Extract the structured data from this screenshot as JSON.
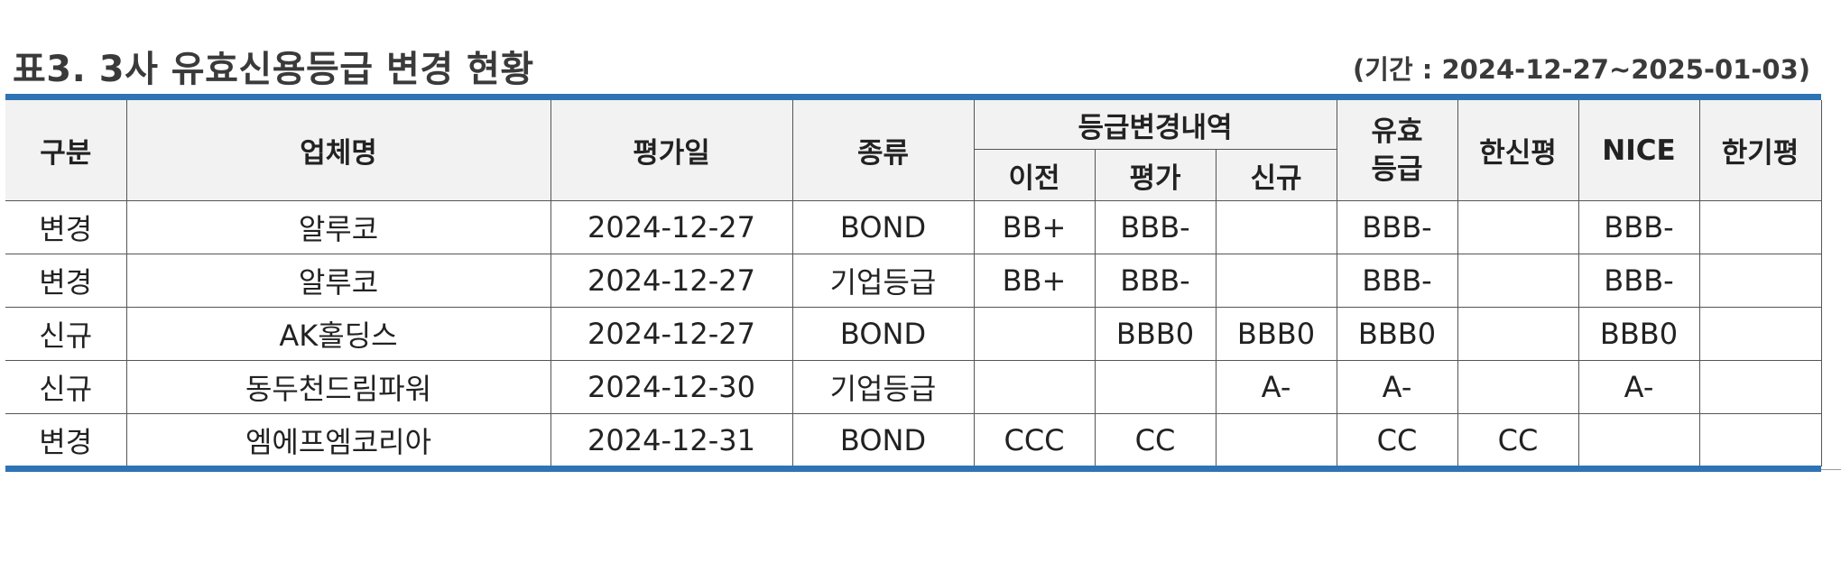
{
  "title": "표3. 3사 유효신용등급 변경 현황",
  "period": "(기간 : 2024-12-27~2025-01-03)",
  "table": {
    "headers": {
      "division": "구분",
      "company": "업체명",
      "eval_date": "평가일",
      "type": "종류",
      "change_group": "등급변경내역",
      "previous": "이전",
      "evaluation": "평가",
      "new": "신규",
      "valid_grade_line1": "유효",
      "valid_grade_line2": "등급",
      "hanshin": "한신평",
      "nice": "NICE",
      "hankipyeong": "한기평"
    },
    "rows": [
      [
        "변경",
        "알루코",
        "2024-12-27",
        "BOND",
        "BB+",
        "BBB-",
        "",
        "BBB-",
        "",
        "BBB-",
        ""
      ],
      [
        "변경",
        "알루코",
        "2024-12-27",
        "기업등급",
        "BB+",
        "BBB-",
        "",
        "BBB-",
        "",
        "BBB-",
        ""
      ],
      [
        "신규",
        "AK홀딩스",
        "2024-12-27",
        "BOND",
        "",
        "BBB0",
        "BBB0",
        "BBB0",
        "",
        "BBB0",
        ""
      ],
      [
        "신규",
        "동두천드림파워",
        "2024-12-30",
        "기업등급",
        "",
        "",
        "A-",
        "A-",
        "",
        "A-",
        ""
      ],
      [
        "변경",
        "엠에프엠코리아",
        "2024-12-31",
        "BOND",
        "CCC",
        "CC",
        "",
        "CC",
        "CC",
        "",
        ""
      ]
    ]
  }
}
